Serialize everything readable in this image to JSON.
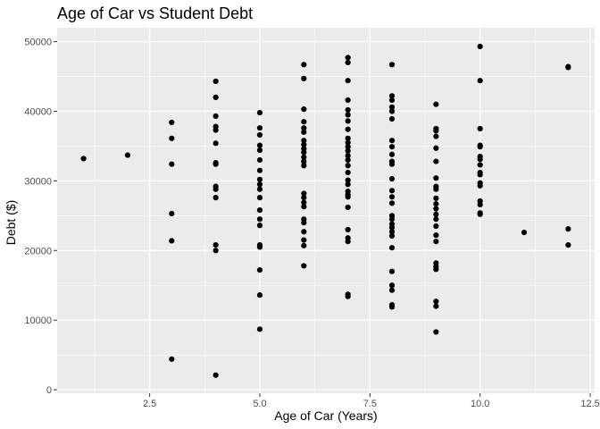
{
  "chart_data": {
    "type": "scatter",
    "title": "Age of Car vs Student Debt",
    "xlabel": "Age of Car (Years)",
    "ylabel": "Debt ($)",
    "xlim": [
      0.4,
      12.6
    ],
    "ylim": [
      -500,
      52000
    ],
    "xticks": [
      2.5,
      5.0,
      7.5,
      10.0,
      12.5
    ],
    "xtick_labels": [
      "2.5",
      "5.0",
      "7.5",
      "10.0",
      "12.5"
    ],
    "yticks": [
      0,
      10000,
      20000,
      30000,
      40000,
      50000
    ],
    "ytick_labels": [
      "0",
      "10000",
      "20000",
      "30000",
      "40000",
      "50000"
    ],
    "grid": true,
    "point_color": "#000000",
    "panel_color": "#ebebeb",
    "grid_color": "#ffffff",
    "points": [
      {
        "x": 1,
        "y": 33200
      },
      {
        "x": 2,
        "y": 33700
      },
      {
        "x": 3,
        "y": 38400
      },
      {
        "x": 3,
        "y": 36100
      },
      {
        "x": 3,
        "y": 32400
      },
      {
        "x": 3,
        "y": 25300
      },
      {
        "x": 3,
        "y": 21400
      },
      {
        "x": 3,
        "y": 4400
      },
      {
        "x": 4,
        "y": 44300
      },
      {
        "x": 4,
        "y": 42000
      },
      {
        "x": 4,
        "y": 39300
      },
      {
        "x": 4,
        "y": 37800
      },
      {
        "x": 4,
        "y": 37300
      },
      {
        "x": 4,
        "y": 35400
      },
      {
        "x": 4,
        "y": 32600
      },
      {
        "x": 4,
        "y": 32400
      },
      {
        "x": 4,
        "y": 29200
      },
      {
        "x": 4,
        "y": 28800
      },
      {
        "x": 4,
        "y": 27600
      },
      {
        "x": 4,
        "y": 20800
      },
      {
        "x": 4,
        "y": 20000
      },
      {
        "x": 4,
        "y": 2100
      },
      {
        "x": 5,
        "y": 39800
      },
      {
        "x": 5,
        "y": 37600
      },
      {
        "x": 5,
        "y": 36600
      },
      {
        "x": 5,
        "y": 35100
      },
      {
        "x": 5,
        "y": 34400
      },
      {
        "x": 5,
        "y": 33000
      },
      {
        "x": 5,
        "y": 31500
      },
      {
        "x": 5,
        "y": 30200
      },
      {
        "x": 5,
        "y": 29500
      },
      {
        "x": 5,
        "y": 28800
      },
      {
        "x": 5,
        "y": 27600
      },
      {
        "x": 5,
        "y": 25800
      },
      {
        "x": 5,
        "y": 24500
      },
      {
        "x": 5,
        "y": 23600
      },
      {
        "x": 5,
        "y": 20800
      },
      {
        "x": 5,
        "y": 20500
      },
      {
        "x": 5,
        "y": 17200
      },
      {
        "x": 5,
        "y": 13600
      },
      {
        "x": 5,
        "y": 8700
      },
      {
        "x": 6,
        "y": 46700
      },
      {
        "x": 6,
        "y": 44700
      },
      {
        "x": 6,
        "y": 40300
      },
      {
        "x": 6,
        "y": 38500
      },
      {
        "x": 6,
        "y": 37600
      },
      {
        "x": 6,
        "y": 37000
      },
      {
        "x": 6,
        "y": 35800
      },
      {
        "x": 6,
        "y": 35200
      },
      {
        "x": 6,
        "y": 34600
      },
      {
        "x": 6,
        "y": 34100
      },
      {
        "x": 6,
        "y": 33400
      },
      {
        "x": 6,
        "y": 32800
      },
      {
        "x": 6,
        "y": 32200
      },
      {
        "x": 6,
        "y": 28200
      },
      {
        "x": 6,
        "y": 27600
      },
      {
        "x": 6,
        "y": 26900
      },
      {
        "x": 6,
        "y": 26300
      },
      {
        "x": 6,
        "y": 24500
      },
      {
        "x": 6,
        "y": 24000
      },
      {
        "x": 6,
        "y": 22700
      },
      {
        "x": 6,
        "y": 21500
      },
      {
        "x": 6,
        "y": 20700
      },
      {
        "x": 6,
        "y": 17800
      },
      {
        "x": 7,
        "y": 47700
      },
      {
        "x": 7,
        "y": 47000
      },
      {
        "x": 7,
        "y": 44400
      },
      {
        "x": 7,
        "y": 41600
      },
      {
        "x": 7,
        "y": 40200
      },
      {
        "x": 7,
        "y": 39500
      },
      {
        "x": 7,
        "y": 38600
      },
      {
        "x": 7,
        "y": 37400
      },
      {
        "x": 7,
        "y": 36100
      },
      {
        "x": 7,
        "y": 35500
      },
      {
        "x": 7,
        "y": 34900
      },
      {
        "x": 7,
        "y": 34300
      },
      {
        "x": 7,
        "y": 33600
      },
      {
        "x": 7,
        "y": 33000
      },
      {
        "x": 7,
        "y": 32200
      },
      {
        "x": 7,
        "y": 31200
      },
      {
        "x": 7,
        "y": 30100
      },
      {
        "x": 7,
        "y": 29500
      },
      {
        "x": 7,
        "y": 28500
      },
      {
        "x": 7,
        "y": 28000
      },
      {
        "x": 7,
        "y": 27700
      },
      {
        "x": 7,
        "y": 26200
      },
      {
        "x": 7,
        "y": 23000
      },
      {
        "x": 7,
        "y": 21800
      },
      {
        "x": 7,
        "y": 21300
      },
      {
        "x": 7,
        "y": 13700
      },
      {
        "x": 7,
        "y": 13400
      },
      {
        "x": 8,
        "y": 46700
      },
      {
        "x": 8,
        "y": 42200
      },
      {
        "x": 8,
        "y": 41600
      },
      {
        "x": 8,
        "y": 40600
      },
      {
        "x": 8,
        "y": 40000
      },
      {
        "x": 8,
        "y": 38900
      },
      {
        "x": 8,
        "y": 35800
      },
      {
        "x": 8,
        "y": 34900
      },
      {
        "x": 8,
        "y": 33800
      },
      {
        "x": 8,
        "y": 32800
      },
      {
        "x": 8,
        "y": 32400
      },
      {
        "x": 8,
        "y": 30300
      },
      {
        "x": 8,
        "y": 28600
      },
      {
        "x": 8,
        "y": 27700
      },
      {
        "x": 8,
        "y": 26800
      },
      {
        "x": 8,
        "y": 25000
      },
      {
        "x": 8,
        "y": 24500
      },
      {
        "x": 8,
        "y": 23800
      },
      {
        "x": 8,
        "y": 23300
      },
      {
        "x": 8,
        "y": 22700
      },
      {
        "x": 8,
        "y": 22100
      },
      {
        "x": 8,
        "y": 20400
      },
      {
        "x": 8,
        "y": 17000
      },
      {
        "x": 8,
        "y": 15000
      },
      {
        "x": 8,
        "y": 14300
      },
      {
        "x": 8,
        "y": 12200
      },
      {
        "x": 8,
        "y": 11900
      },
      {
        "x": 9,
        "y": 41000
      },
      {
        "x": 9,
        "y": 37500
      },
      {
        "x": 9,
        "y": 37200
      },
      {
        "x": 9,
        "y": 36400
      },
      {
        "x": 9,
        "y": 34700
      },
      {
        "x": 9,
        "y": 32800
      },
      {
        "x": 9,
        "y": 30400
      },
      {
        "x": 9,
        "y": 29200
      },
      {
        "x": 9,
        "y": 28800
      },
      {
        "x": 9,
        "y": 27500
      },
      {
        "x": 9,
        "y": 26700
      },
      {
        "x": 9,
        "y": 26000
      },
      {
        "x": 9,
        "y": 25200
      },
      {
        "x": 9,
        "y": 24500
      },
      {
        "x": 9,
        "y": 23500
      },
      {
        "x": 9,
        "y": 22200
      },
      {
        "x": 9,
        "y": 21300
      },
      {
        "x": 9,
        "y": 18200
      },
      {
        "x": 9,
        "y": 17700
      },
      {
        "x": 9,
        "y": 17300
      },
      {
        "x": 9,
        "y": 12700
      },
      {
        "x": 9,
        "y": 12000
      },
      {
        "x": 9,
        "y": 8300
      },
      {
        "x": 10,
        "y": 49300
      },
      {
        "x": 10,
        "y": 44400
      },
      {
        "x": 10,
        "y": 37500
      },
      {
        "x": 10,
        "y": 35100
      },
      {
        "x": 10,
        "y": 34900
      },
      {
        "x": 10,
        "y": 33500
      },
      {
        "x": 10,
        "y": 33100
      },
      {
        "x": 10,
        "y": 32300
      },
      {
        "x": 10,
        "y": 31200
      },
      {
        "x": 10,
        "y": 30900
      },
      {
        "x": 10,
        "y": 29700
      },
      {
        "x": 10,
        "y": 29300
      },
      {
        "x": 10,
        "y": 27100
      },
      {
        "x": 10,
        "y": 26600
      },
      {
        "x": 10,
        "y": 25400
      },
      {
        "x": 10,
        "y": 25200
      },
      {
        "x": 11,
        "y": 22600
      },
      {
        "x": 12,
        "y": 46400
      },
      {
        "x": 12,
        "y": 46300
      },
      {
        "x": 12,
        "y": 23100
      },
      {
        "x": 12,
        "y": 20800
      }
    ]
  }
}
